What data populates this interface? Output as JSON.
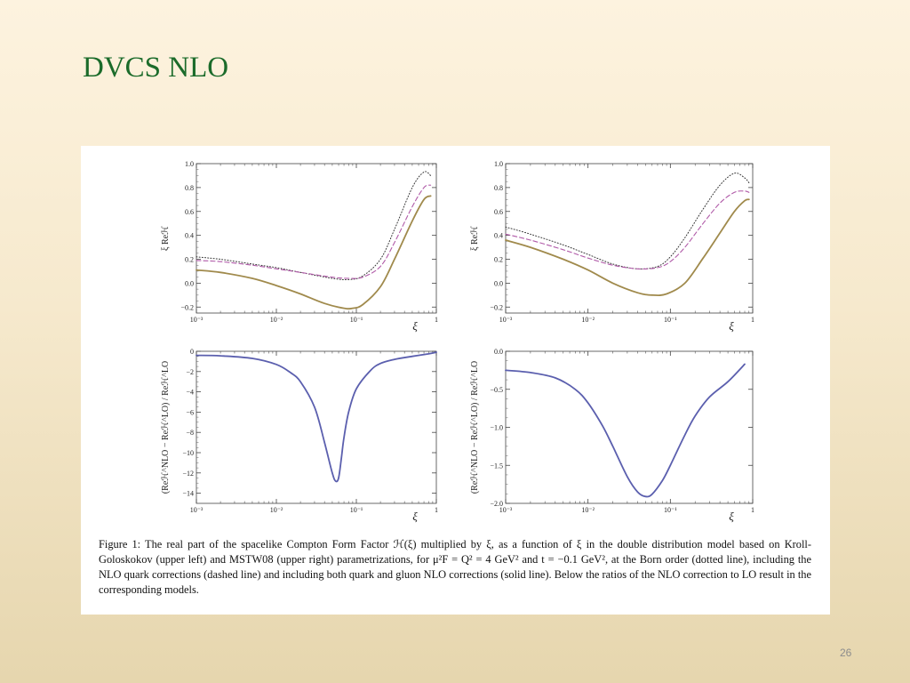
{
  "slide": {
    "title": "DVCS NLO",
    "page_number": "26",
    "caption": "Figure 1: The real part of the spacelike Compton Form Factor ℋ(ξ) multiplied by ξ, as a function of ξ in the double distribution model based on Kroll-Goloskokov (upper left) and MSTW08 (upper right) parametrizations, for μ²F = Q² = 4 GeV² and t = −0.1 GeV², at the Born order (dotted line), including the NLO quark corrections (dashed line) and including both quark and gluon NLO corrections (solid line). Below the ratios of the NLO correction to LO result in the corresponding models."
  },
  "colors": {
    "dotted": "#333333",
    "dashed": "#b05aa8",
    "solid": "#a08a4c",
    "ratio": "#5b5fae",
    "title": "#1b6b2a"
  },
  "chart_data": [
    {
      "type": "line",
      "panel": "upper-left",
      "xscale": "log",
      "xlim": [
        0.001,
        1
      ],
      "ylim": [
        -0.25,
        1.0
      ],
      "xlabel": "ξ",
      "ylabel": "ξ Reℋ",
      "x_ticks": [
        "10⁻³",
        "10⁻²",
        "10⁻¹",
        "1"
      ],
      "y_ticks": [
        -0.2,
        0.0,
        0.2,
        0.4,
        0.6,
        0.8,
        1.0
      ],
      "y_tick_labels": [
        "−0.2",
        "0.0",
        "0.2",
        "0.4",
        "0.6",
        "0.8",
        "1.0"
      ],
      "series": [
        {
          "style": "dotted",
          "x": [
            0.001,
            0.002,
            0.005,
            0.01,
            0.02,
            0.05,
            0.08,
            0.12,
            0.2,
            0.3,
            0.5,
            0.7,
            0.85
          ],
          "y": [
            0.22,
            0.2,
            0.16,
            0.13,
            0.09,
            0.04,
            0.03,
            0.06,
            0.2,
            0.45,
            0.8,
            0.93,
            0.9
          ]
        },
        {
          "style": "dashed",
          "x": [
            0.001,
            0.002,
            0.005,
            0.01,
            0.02,
            0.05,
            0.08,
            0.12,
            0.2,
            0.3,
            0.5,
            0.7,
            0.85
          ],
          "y": [
            0.19,
            0.18,
            0.15,
            0.12,
            0.09,
            0.05,
            0.04,
            0.05,
            0.14,
            0.34,
            0.64,
            0.8,
            0.82
          ]
        },
        {
          "style": "solid",
          "x": [
            0.001,
            0.002,
            0.005,
            0.01,
            0.02,
            0.04,
            0.07,
            0.09,
            0.12,
            0.2,
            0.3,
            0.5,
            0.7,
            0.85
          ],
          "y": [
            0.11,
            0.09,
            0.04,
            -0.02,
            -0.09,
            -0.17,
            -0.21,
            -0.21,
            -0.18,
            -0.03,
            0.2,
            0.52,
            0.7,
            0.73
          ]
        }
      ]
    },
    {
      "type": "line",
      "panel": "upper-right",
      "xscale": "log",
      "xlim": [
        0.001,
        1
      ],
      "ylim": [
        -0.25,
        1.0
      ],
      "xlabel": "ξ",
      "ylabel": "ξ Reℋ",
      "x_ticks": [
        "10⁻³",
        "10⁻²",
        "10⁻¹",
        "1"
      ],
      "y_ticks": [
        -0.2,
        0.0,
        0.2,
        0.4,
        0.6,
        0.8,
        1.0
      ],
      "y_tick_labels": [
        "−0.2",
        "0.0",
        "0.2",
        "0.4",
        "0.6",
        "0.8",
        "1.0"
      ],
      "series": [
        {
          "style": "dotted",
          "x": [
            0.001,
            0.002,
            0.005,
            0.01,
            0.02,
            0.04,
            0.07,
            0.1,
            0.15,
            0.25,
            0.4,
            0.6,
            0.8,
            0.9
          ],
          "y": [
            0.47,
            0.41,
            0.32,
            0.24,
            0.16,
            0.12,
            0.14,
            0.22,
            0.38,
            0.62,
            0.82,
            0.92,
            0.88,
            0.84
          ]
        },
        {
          "style": "dashed",
          "x": [
            0.001,
            0.002,
            0.005,
            0.01,
            0.02,
            0.04,
            0.07,
            0.1,
            0.15,
            0.25,
            0.4,
            0.6,
            0.8,
            0.9
          ],
          "y": [
            0.41,
            0.36,
            0.28,
            0.21,
            0.15,
            0.12,
            0.13,
            0.18,
            0.3,
            0.5,
            0.67,
            0.76,
            0.77,
            0.76
          ]
        },
        {
          "style": "solid",
          "x": [
            0.001,
            0.002,
            0.005,
            0.01,
            0.02,
            0.04,
            0.06,
            0.09,
            0.15,
            0.25,
            0.4,
            0.6,
            0.8,
            0.9
          ],
          "y": [
            0.36,
            0.3,
            0.2,
            0.11,
            0.0,
            -0.08,
            -0.1,
            -0.09,
            0.0,
            0.21,
            0.42,
            0.6,
            0.69,
            0.7
          ]
        }
      ]
    },
    {
      "type": "line",
      "panel": "lower-left",
      "xscale": "log",
      "xlim": [
        0.001,
        1
      ],
      "ylim": [
        -15,
        0
      ],
      "xlabel": "ξ",
      "ylabel": "(Reℋ^NLO − Reℋ^LO) / Reℋ^LO",
      "x_ticks": [
        "10⁻³",
        "10⁻²",
        "10⁻¹",
        "1"
      ],
      "y_ticks": [
        -14,
        -12,
        -10,
        -8,
        -6,
        -4,
        -2,
        0
      ],
      "y_tick_labels": [
        "−14",
        "−12",
        "−10",
        "−8",
        "−6",
        "−4",
        "−2",
        "0"
      ],
      "series": [
        {
          "style": "solid",
          "x": [
            0.001,
            0.002,
            0.005,
            0.01,
            0.015,
            0.02,
            0.03,
            0.04,
            0.05,
            0.055,
            0.06,
            0.065,
            0.07,
            0.08,
            0.1,
            0.15,
            0.2,
            0.3,
            0.5,
            0.8,
            1.0
          ],
          "y": [
            -0.4,
            -0.45,
            -0.7,
            -1.3,
            -2.1,
            -3.0,
            -5.5,
            -9.0,
            -12.0,
            -12.8,
            -12.5,
            -10.5,
            -8.5,
            -6.0,
            -3.7,
            -1.9,
            -1.2,
            -0.8,
            -0.5,
            -0.25,
            -0.1
          ]
        }
      ]
    },
    {
      "type": "line",
      "panel": "lower-right",
      "xscale": "log",
      "xlim": [
        0.001,
        1
      ],
      "ylim": [
        -2.0,
        0.0
      ],
      "xlabel": "ξ",
      "ylabel": "(Reℋ^NLO − Reℋ^LO) / Reℋ^LO",
      "x_ticks": [
        "10⁻³",
        "10⁻²",
        "10⁻¹",
        "1"
      ],
      "y_ticks": [
        -2.0,
        -1.5,
        -1.0,
        -0.5,
        0.0
      ],
      "y_tick_labels": [
        "−2.0",
        "−1.5",
        "−1.0",
        "−0.5",
        "0.0"
      ],
      "series": [
        {
          "style": "solid",
          "x": [
            0.001,
            0.002,
            0.004,
            0.007,
            0.01,
            0.015,
            0.02,
            0.03,
            0.04,
            0.05,
            0.06,
            0.08,
            0.1,
            0.15,
            0.2,
            0.3,
            0.5,
            0.8
          ],
          "y": [
            -0.25,
            -0.28,
            -0.35,
            -0.5,
            -0.68,
            -0.98,
            -1.25,
            -1.65,
            -1.85,
            -1.91,
            -1.88,
            -1.7,
            -1.5,
            -1.1,
            -0.85,
            -0.6,
            -0.4,
            -0.17
          ]
        }
      ]
    }
  ]
}
